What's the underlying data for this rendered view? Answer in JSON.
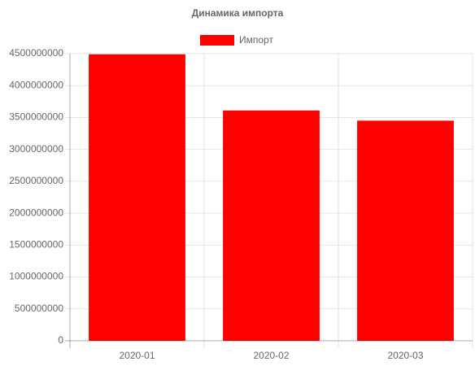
{
  "chart_data": {
    "type": "bar",
    "title": "Динамика импорта",
    "categories": [
      "2020-01",
      "2020-02",
      "2020-03"
    ],
    "series": [
      {
        "name": "Импорт",
        "color": "#ff0000",
        "values": [
          4490000000,
          3610000000,
          3450000000
        ]
      }
    ],
    "ylim": [
      0,
      4500000000
    ],
    "yticks": [
      0,
      500000000,
      1000000000,
      1500000000,
      2000000000,
      2500000000,
      3000000000,
      3500000000,
      4000000000,
      4500000000
    ],
    "grid": true,
    "legend": "top"
  }
}
